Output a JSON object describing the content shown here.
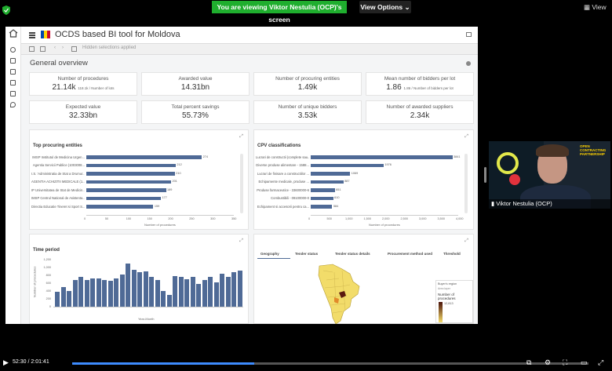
{
  "share_banner": "You are viewing Viktor Nestulia (OCP)'s screen",
  "view_options": "View Options",
  "view_button": "View",
  "app": {
    "title": "OCDS based BI tool for Moldova",
    "selection_hint": "Hidden selections applied",
    "section_title": "General overview",
    "flag_colors": [
      "#0046ae",
      "#ffd200",
      "#cc092f"
    ]
  },
  "kpis": [
    {
      "label": "Number of procedures",
      "value": "21.14k",
      "sub": "118.1k / Number of lots"
    },
    {
      "label": "Awarded value",
      "value": "14.31bn",
      "sub": ""
    },
    {
      "label": "Number of procuring entities",
      "value": "1.49k",
      "sub": ""
    },
    {
      "label": "Mean number of bidders per lot",
      "value": "1.86",
      "sub": "1.86 / Number of bidders per lot"
    },
    {
      "label": "Expected value",
      "value": "32.33bn",
      "sub": ""
    },
    {
      "label": "Total percent savings",
      "value": "55.73%",
      "sub": ""
    },
    {
      "label": "Number of unique bidders",
      "value": "3.53k",
      "sub": ""
    },
    {
      "label": "Number of awarded suppliers",
      "value": "2.34k",
      "sub": ""
    }
  ],
  "top_procuring": {
    "title": "Top procuring entities",
    "xlabel": "Number of procedures",
    "ticks": [
      "0",
      "50",
      "100",
      "150",
      "200",
      "250",
      "300",
      "350"
    ],
    "bars": [
      {
        "label": "IMSP Institutul de Medicina Urgen...",
        "value": 274
      },
      {
        "label": "Agentia Servicii Publice (1003008...",
        "value": 212
      },
      {
        "label": "I.S. 'Administratia de Stat a Drumur...",
        "value": 210
      },
      {
        "label": "AGENTIA ACHIZITII MEDICALE (1...",
        "value": 201
      },
      {
        "label": "IP Universitatea de Stat de Medicin...",
        "value": 189
      },
      {
        "label": "IMSP Centrul National de Asistenta...",
        "value": 177
      },
      {
        "label": "Directia Educatie Tineret si Sport S...",
        "value": 159
      }
    ]
  },
  "cpv": {
    "title": "CPV classifications",
    "xlabel": "Number of procedures",
    "ticks": [
      "0",
      "500",
      "1,000",
      "1,500",
      "2,000",
      "2,500",
      "3,000",
      "3,500",
      "4,000"
    ],
    "bars": [
      {
        "label": "Lucrari de constructii (complete sau...",
        "value": 3841
      },
      {
        "label": "Diverse produse alimentare - 1588...",
        "value": 1976
      },
      {
        "label": "Lucrari de finisare a constructiilor ...",
        "value": 1069
      },
      {
        "label": "Echipamente medicale, produse ...",
        "value": 887
      },
      {
        "label": "Produse farmaceutice - 33600000-6",
        "value": 651
      },
      {
        "label": "Combustibili - 09100000-0",
        "value": 610
      },
      {
        "label": "Echipament si accesorii pentru ca...",
        "value": 584
      }
    ]
  },
  "time_period": {
    "title": "Time period",
    "ylabel": "Number of procedures",
    "xlabel": "Year-Month",
    "yticks": [
      "0",
      "200",
      "400",
      "600",
      "800",
      "1,000",
      "1,200"
    ],
    "values": [
      380,
      500,
      400,
      680,
      760,
      690,
      720,
      720,
      690,
      660,
      720,
      820,
      1100,
      950,
      880,
      900,
      760,
      680,
      400,
      300,
      780,
      770,
      700,
      760,
      580,
      680,
      760,
      620,
      840,
      760,
      880,
      920
    ]
  },
  "map_panel": {
    "tabs": [
      "Geography",
      "Tender status",
      "Tender status details",
      "Procurement method used",
      "Threshold"
    ],
    "legend_title": "Buyer's region",
    "legend_sub": "Area layer",
    "legend_measure": "Number of procedures",
    "legend_max": "12,813"
  },
  "presenter": "Viktor Nestulia (OCP)",
  "player": {
    "time": "52:30 / 2:01:41",
    "progress": 0.352
  }
}
